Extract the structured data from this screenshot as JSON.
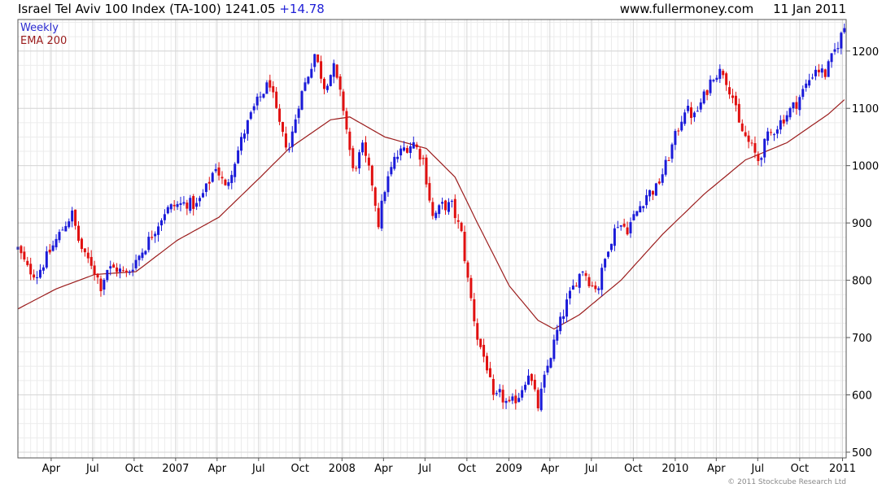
{
  "header": {
    "title": "Israel Tel Aviv 100 Index (TA-100)",
    "last": "1241.05",
    "change": "+14.78",
    "source": "www.fullermoney.com",
    "date": "11 Jan 2011"
  },
  "copyright": "© 2011 Stockcube Research Ltd",
  "colors": {
    "up": "#1a1ad8",
    "down": "#e01010",
    "ema": "#9b1c1c",
    "grid": "#d6d6d6",
    "frame": "#555555"
  },
  "chart_data": {
    "type": "candlestick",
    "frequency": "weekly",
    "legend": [
      "Weekly",
      "EMA 200"
    ],
    "legend_position": "top-left",
    "ylim": [
      490,
      1255
    ],
    "yticks": [
      500,
      600,
      700,
      800,
      900,
      1000,
      1100,
      1200
    ],
    "y_axis_side": "right",
    "grid": true,
    "x_start": "2006-01-20",
    "x_end": "2011-01-11",
    "xticks": [
      {
        "label": "Apr",
        "date": "2006-04-03"
      },
      {
        "label": "Jul",
        "date": "2006-07-03"
      },
      {
        "label": "Oct",
        "date": "2006-10-02"
      },
      {
        "label": "2007",
        "date": "2007-01-01"
      },
      {
        "label": "Apr",
        "date": "2007-04-02"
      },
      {
        "label": "Jul",
        "date": "2007-07-02"
      },
      {
        "label": "Oct",
        "date": "2007-10-01"
      },
      {
        "label": "2008",
        "date": "2008-01-01"
      },
      {
        "label": "Apr",
        "date": "2008-04-01"
      },
      {
        "label": "Jul",
        "date": "2008-07-01"
      },
      {
        "label": "Oct",
        "date": "2008-10-01"
      },
      {
        "label": "2009",
        "date": "2009-01-01"
      },
      {
        "label": "Apr",
        "date": "2009-04-01"
      },
      {
        "label": "Jul",
        "date": "2009-07-01"
      },
      {
        "label": "Oct",
        "date": "2009-10-01"
      },
      {
        "label": "2010",
        "date": "2010-01-01"
      },
      {
        "label": "Apr",
        "date": "2010-04-01"
      },
      {
        "label": "Jul",
        "date": "2010-07-01"
      },
      {
        "label": "Oct",
        "date": "2010-10-01"
      },
      {
        "label": "2011",
        "date": "2011-01-03"
      }
    ],
    "close_anchors": [
      [
        "2006-01-20",
        855
      ],
      [
        "2006-02-10",
        820
      ],
      [
        "2006-03-03",
        810
      ],
      [
        "2006-03-24",
        840
      ],
      [
        "2006-04-14",
        870
      ],
      [
        "2006-05-05",
        900
      ],
      [
        "2006-05-19",
        915
      ],
      [
        "2006-06-02",
        870
      ],
      [
        "2006-06-16",
        840
      ],
      [
        "2006-06-30",
        830
      ],
      [
        "2006-07-21",
        790
      ],
      [
        "2006-08-04",
        820
      ],
      [
        "2006-08-25",
        820
      ],
      [
        "2006-09-15",
        810
      ],
      [
        "2006-10-06",
        835
      ],
      [
        "2006-10-27",
        860
      ],
      [
        "2006-11-17",
        890
      ],
      [
        "2006-12-08",
        920
      ],
      [
        "2006-12-29",
        930
      ],
      [
        "2007-01-26",
        935
      ],
      [
        "2007-02-16",
        930
      ],
      [
        "2007-03-09",
        960
      ],
      [
        "2007-03-30",
        1000
      ],
      [
        "2007-04-20",
        960
      ],
      [
        "2007-05-11",
        1010
      ],
      [
        "2007-06-01",
        1060
      ],
      [
        "2007-06-22",
        1100
      ],
      [
        "2007-07-13",
        1130
      ],
      [
        "2007-07-27",
        1145
      ],
      [
        "2007-08-10",
        1090
      ],
      [
        "2007-08-24",
        1050
      ],
      [
        "2007-09-07",
        1030
      ],
      [
        "2007-09-28",
        1110
      ],
      [
        "2007-10-19",
        1160
      ],
      [
        "2007-11-02",
        1195
      ],
      [
        "2007-11-23",
        1140
      ],
      [
        "2007-12-14",
        1170
      ],
      [
        "2008-01-04",
        1100
      ],
      [
        "2008-01-25",
        990
      ],
      [
        "2008-02-15",
        1030
      ],
      [
        "2008-03-07",
        970
      ],
      [
        "2008-03-21",
        900
      ],
      [
        "2008-04-04",
        960
      ],
      [
        "2008-04-25",
        1010
      ],
      [
        "2008-05-16",
        1030
      ],
      [
        "2008-06-06",
        1040
      ],
      [
        "2008-06-27",
        1010
      ],
      [
        "2008-07-18",
        910
      ],
      [
        "2008-08-08",
        930
      ],
      [
        "2008-08-29",
        930
      ],
      [
        "2008-09-19",
        880
      ],
      [
        "2008-10-03",
        800
      ],
      [
        "2008-10-24",
        700
      ],
      [
        "2008-11-14",
        650
      ],
      [
        "2008-11-28",
        590
      ],
      [
        "2008-12-12",
        600
      ],
      [
        "2009-01-02",
        580
      ],
      [
        "2009-01-23",
        600
      ],
      [
        "2009-02-13",
        640
      ],
      [
        "2009-03-06",
        580
      ],
      [
        "2009-03-27",
        650
      ],
      [
        "2009-04-17",
        710
      ],
      [
        "2009-05-08",
        760
      ],
      [
        "2009-05-29",
        800
      ],
      [
        "2009-06-12",
        820
      ],
      [
        "2009-07-03",
        790
      ],
      [
        "2009-07-17",
        790
      ],
      [
        "2009-08-07",
        860
      ],
      [
        "2009-08-28",
        900
      ],
      [
        "2009-09-18",
        890
      ],
      [
        "2009-10-09",
        920
      ],
      [
        "2009-10-30",
        950
      ],
      [
        "2009-11-20",
        960
      ],
      [
        "2009-12-11",
        1000
      ],
      [
        "2010-01-01",
        1050
      ],
      [
        "2010-01-22",
        1100
      ],
      [
        "2010-02-12",
        1085
      ],
      [
        "2010-03-05",
        1120
      ],
      [
        "2010-03-26",
        1160
      ],
      [
        "2010-04-16",
        1165
      ],
      [
        "2010-05-07",
        1120
      ],
      [
        "2010-05-21",
        1070
      ],
      [
        "2010-06-11",
        1040
      ],
      [
        "2010-07-02",
        1010
      ],
      [
        "2010-07-23",
        1050
      ],
      [
        "2010-08-13",
        1070
      ],
      [
        "2010-09-03",
        1090
      ],
      [
        "2010-09-24",
        1110
      ],
      [
        "2010-10-15",
        1140
      ],
      [
        "2010-11-05",
        1170
      ],
      [
        "2010-11-26",
        1160
      ],
      [
        "2010-12-17",
        1200
      ],
      [
        "2011-01-07",
        1241
      ]
    ],
    "ema_anchors": [
      [
        "2006-01-20",
        750
      ],
      [
        "2006-04-14",
        785
      ],
      [
        "2006-07-07",
        810
      ],
      [
        "2006-10-06",
        815
      ],
      [
        "2007-01-05",
        870
      ],
      [
        "2007-04-06",
        910
      ],
      [
        "2007-07-06",
        980
      ],
      [
        "2007-09-07",
        1030
      ],
      [
        "2007-12-07",
        1080
      ],
      [
        "2008-01-18",
        1085
      ],
      [
        "2008-04-04",
        1050
      ],
      [
        "2008-07-04",
        1030
      ],
      [
        "2008-09-05",
        980
      ],
      [
        "2008-10-24",
        900
      ],
      [
        "2009-01-02",
        790
      ],
      [
        "2009-03-06",
        730
      ],
      [
        "2009-04-10",
        715
      ],
      [
        "2009-06-05",
        740
      ],
      [
        "2009-09-04",
        800
      ],
      [
        "2009-12-04",
        880
      ],
      [
        "2010-03-05",
        950
      ],
      [
        "2010-06-04",
        1010
      ],
      [
        "2010-09-03",
        1040
      ],
      [
        "2010-12-03",
        1090
      ],
      [
        "2011-01-07",
        1115
      ]
    ]
  }
}
